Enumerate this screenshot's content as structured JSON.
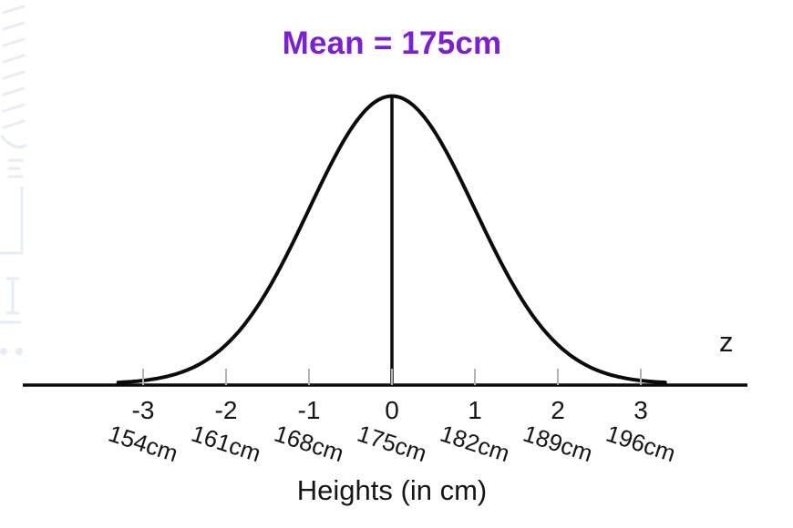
{
  "header": {
    "title": "Mean = 175cm"
  },
  "colors": {
    "title_purple": "#7b1fd6",
    "curve_black": "#0b0b0b",
    "tick_gray": "#b4b4b4",
    "watermark_blue": "#c9d8ef"
  },
  "chart_data": {
    "type": "line",
    "subtype": "normal-distribution-curve",
    "title": "Mean = 175cm",
    "mean": 175,
    "standard_deviation": 7,
    "unit": "cm",
    "xlabel": "Heights (in cm)",
    "z_axis_label": "z",
    "z_range": [
      -3.3,
      3.3
    ],
    "grid": false,
    "legend": "none",
    "ticks": [
      {
        "z": "-3",
        "height": "154cm",
        "value_cm": 154
      },
      {
        "z": "-2",
        "height": "161cm",
        "value_cm": 161
      },
      {
        "z": "-1",
        "height": "168cm",
        "value_cm": 168
      },
      {
        "z": "0",
        "height": "175cm",
        "value_cm": 175
      },
      {
        "z": "1",
        "height": "182cm",
        "value_cm": 182
      },
      {
        "z": "2",
        "height": "189cm",
        "value_cm": 189
      },
      {
        "z": "3",
        "height": "196cm",
        "value_cm": 196
      }
    ]
  }
}
